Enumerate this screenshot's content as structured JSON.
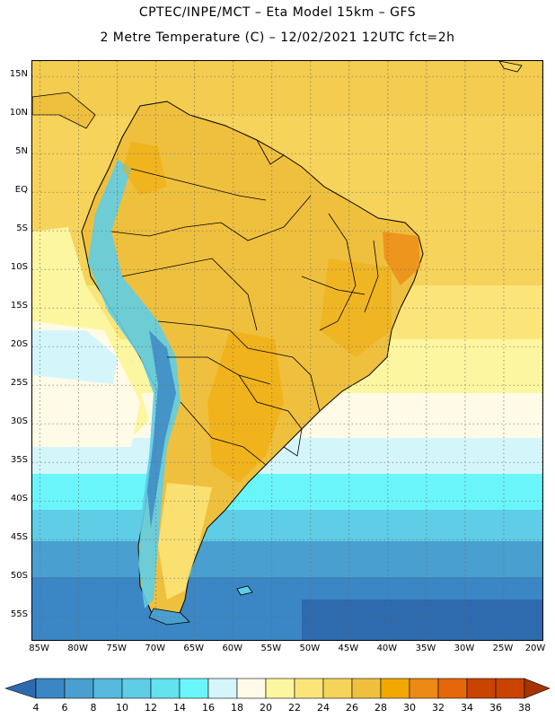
{
  "header": {
    "title_line1": "CPTEC/INPE/MCT –  Eta Model 15km – GFS",
    "title_line2": "2 Metre Temperature (C) – 12/02/2021 12UTC fct=2h"
  },
  "axes": {
    "lat_labels": [
      "15N",
      "10N",
      "5N",
      "EQ",
      "5S",
      "10S",
      "15S",
      "20S",
      "25S",
      "30S",
      "35S",
      "40S",
      "45S",
      "50S",
      "55S"
    ],
    "lat_values": [
      15,
      10,
      5,
      0,
      -5,
      -10,
      -15,
      -20,
      -25,
      -30,
      -35,
      -40,
      -45,
      -50,
      -55
    ],
    "lon_labels": [
      "85W",
      "80W",
      "75W",
      "70W",
      "65W",
      "60W",
      "55W",
      "50W",
      "45W",
      "40W",
      "35W",
      "30W",
      "25W",
      "20W"
    ],
    "lon_values": [
      -85,
      -80,
      -75,
      -70,
      -65,
      -60,
      -55,
      -50,
      -45,
      -40,
      -35,
      -30,
      -25,
      -20
    ],
    "lat_range": [
      -58,
      17
    ],
    "lon_range": [
      -86,
      -20
    ],
    "grid": "dotted"
  },
  "colorbar": {
    "labels": [
      "4",
      "6",
      "8",
      "10",
      "12",
      "14",
      "16",
      "18",
      "20",
      "22",
      "24",
      "26",
      "28",
      "30",
      "32",
      "34",
      "36",
      "38"
    ],
    "colors": [
      "#2e6aae",
      "#3b86c4",
      "#49a0d0",
      "#56b8dc",
      "#5fcde6",
      "#63e2f0",
      "#6af5fb",
      "#d4f6fb",
      "#fffbe6",
      "#fdf6a0",
      "#fbe57a",
      "#f6d35a",
      "#efc03e",
      "#f2a800",
      "#ec8a15",
      "#e4680a",
      "#c84400",
      "#a53400"
    ]
  },
  "colors": {
    "land_border": "#000000",
    "grid": "#6a6a6a"
  }
}
